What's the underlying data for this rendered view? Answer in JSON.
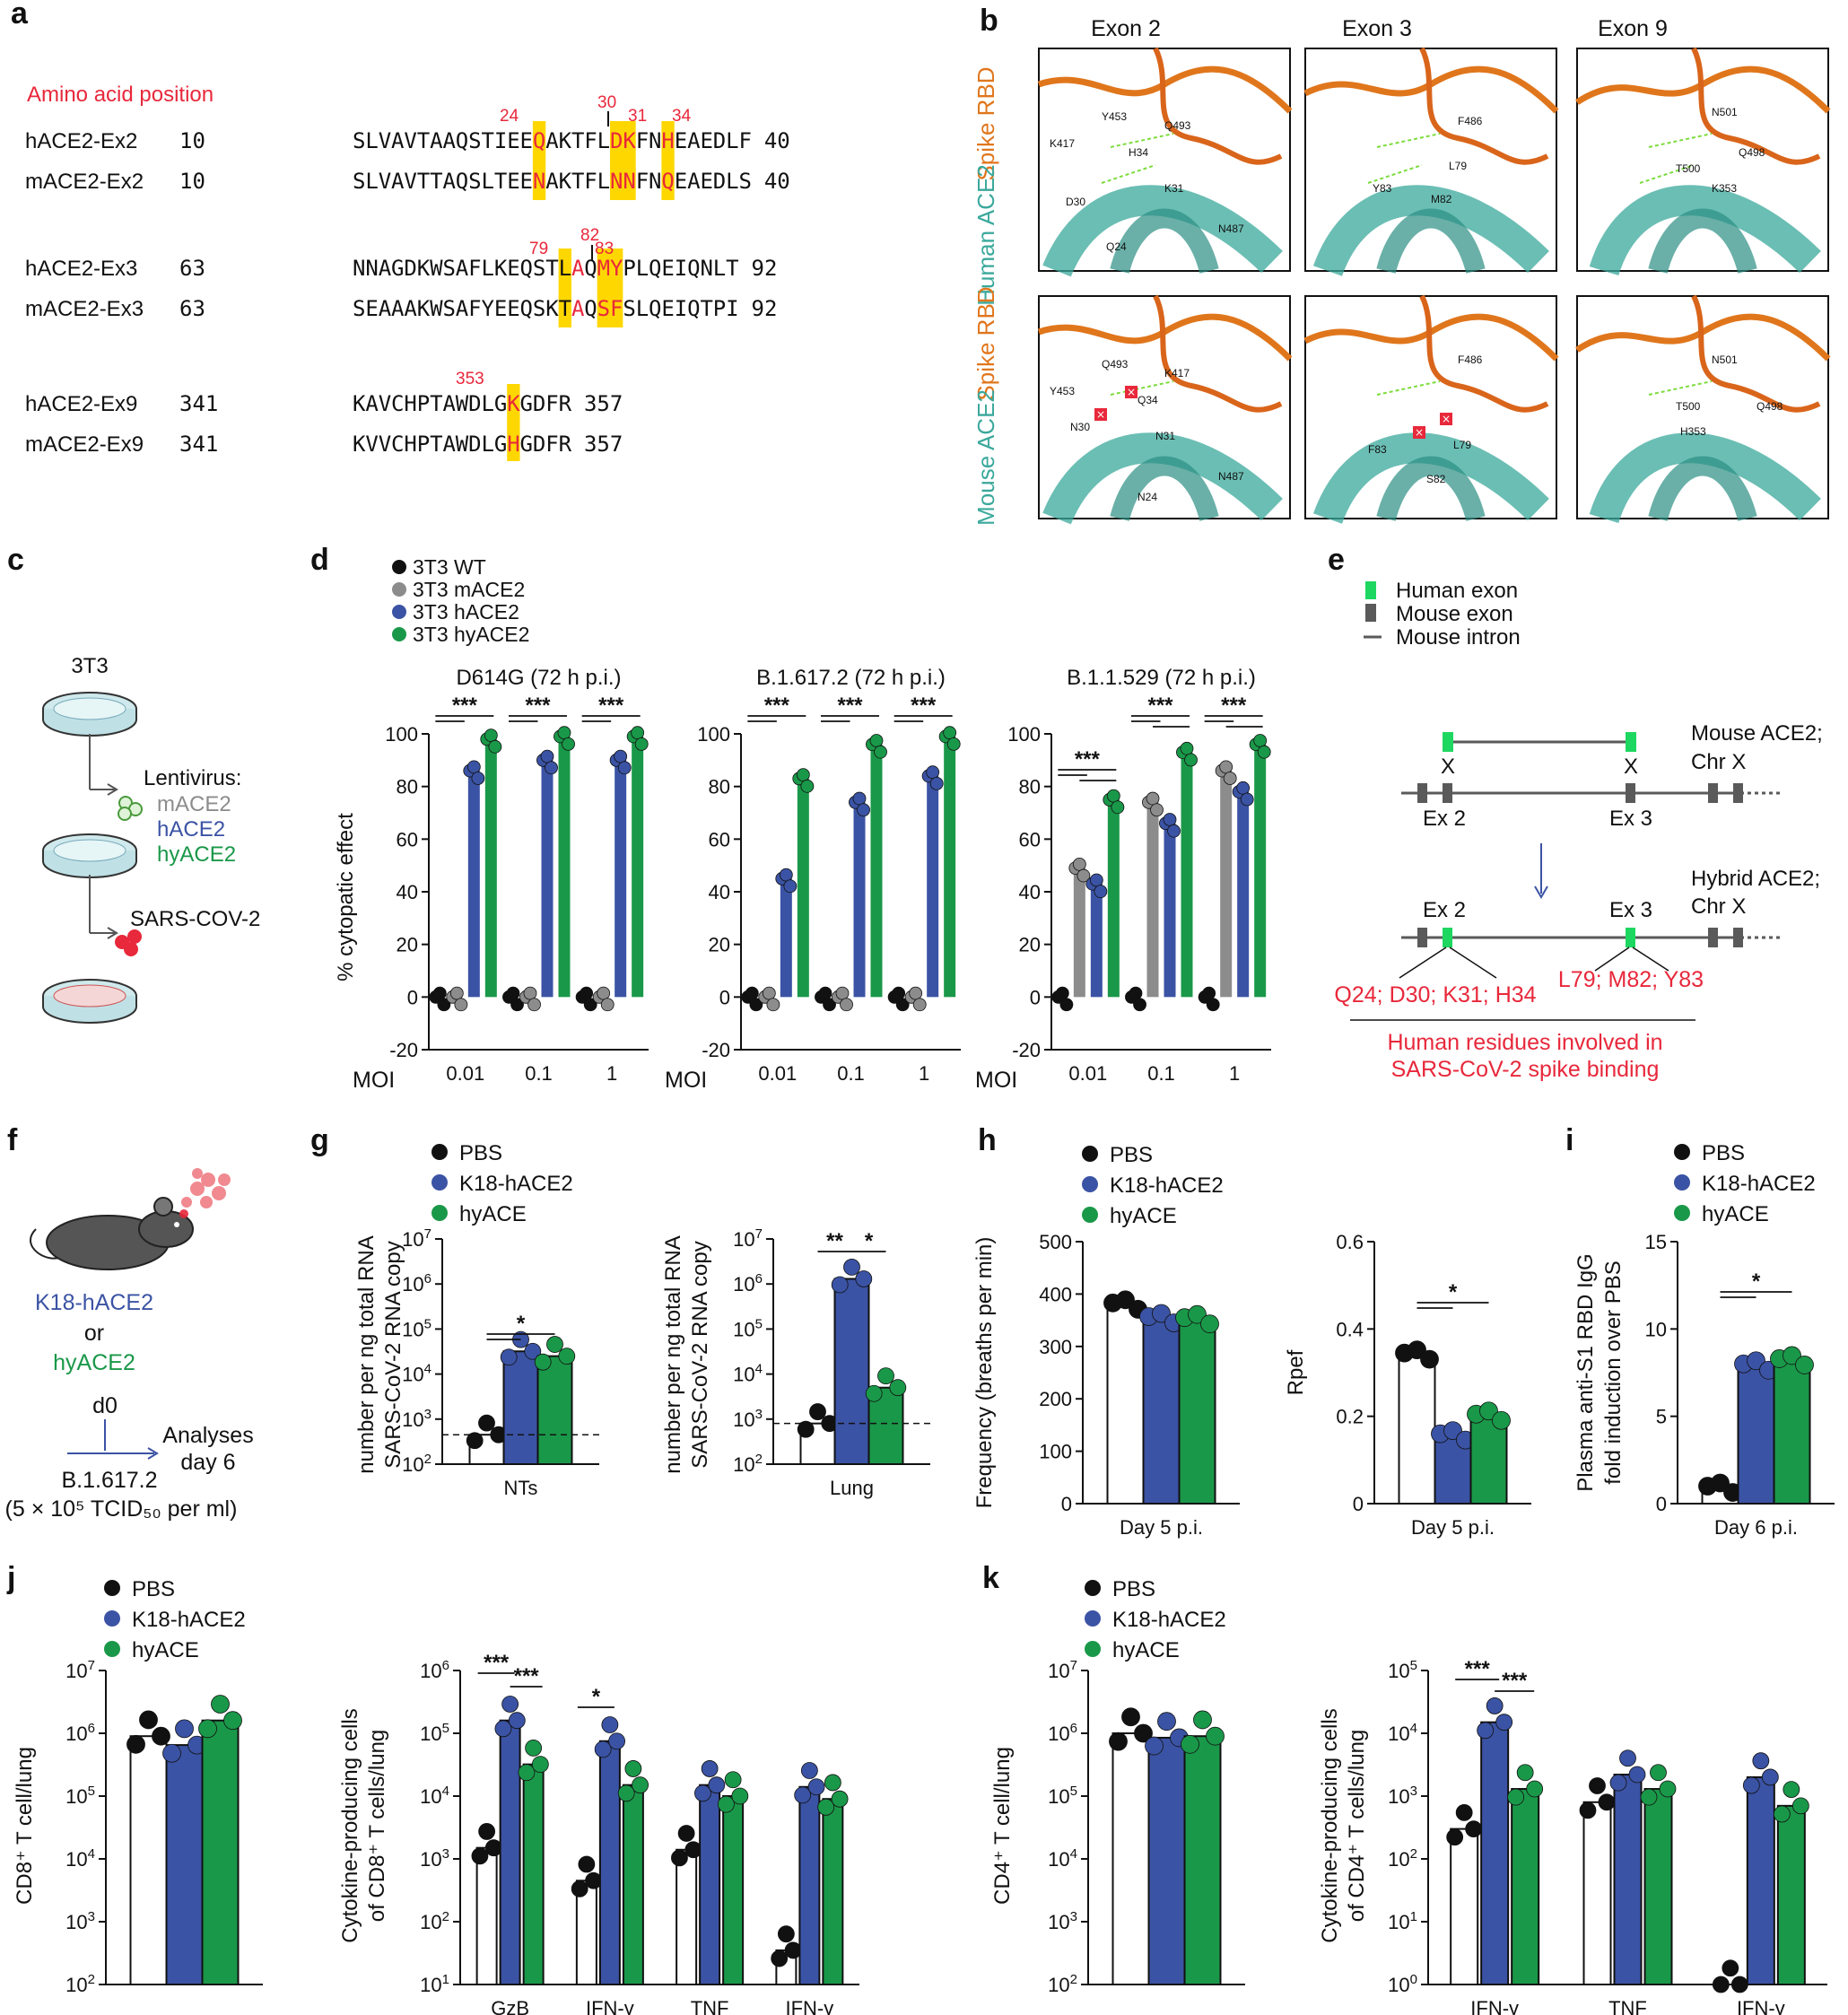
{
  "colors": {
    "wt": "#111111",
    "m": "#8c8c8c",
    "h": "#3b53a4",
    "hy": "#1a9849",
    "pbs": "#ffffff",
    "red": "#e8283b",
    "yellow": "#ffd700",
    "orange": "#e0761c",
    "teal": "#3aa89b",
    "grey": "#5a5a5a"
  },
  "panel_letters": {
    "a": "a",
    "b": "b",
    "c": "c",
    "d": "d",
    "e": "e",
    "f": "f",
    "g": "g",
    "h": "h",
    "i": "i",
    "j": "j",
    "k": "k"
  },
  "panel_a": {
    "header": "Amino acid position",
    "rows": [
      {
        "label": "hACE2-Ex2",
        "start": "10",
        "seq": "SLVAVTAAQSTIEEQAKTFLDKFNHEAEDLF",
        "end": "40"
      },
      {
        "label": "mACE2-Ex2",
        "start": "10",
        "seq": "SLVAVTTAQSLTEENAKTFLNNFNQEAEDLS",
        "end": "40"
      },
      {
        "label": "hACE2-Ex3",
        "start": "63",
        "seq": "NNAGDKWSAFLKEQSTLAQMYPLQEIQNLT",
        "end": "92"
      },
      {
        "label": "mACE2-Ex3",
        "start": "63",
        "seq": "SEAAAKWSAFYEEQSKTAQSFSLQEIQTPI",
        "end": "92"
      },
      {
        "label": "hACE2-Ex9",
        "start": "341",
        "seq": "KAVCHPTAWDLGKGDFR",
        "end": "357"
      },
      {
        "label": "mACE2-Ex9",
        "start": "341",
        "seq": "KVVCHPTAWDLGHGDFR",
        "end": "357"
      }
    ],
    "positions": [
      "24",
      "30",
      "31",
      "34",
      "79",
      "82",
      "83",
      "353"
    ]
  },
  "panel_b": {
    "columns": [
      "Exon 2",
      "Exon 3",
      "Exon 9"
    ],
    "rows": [
      {
        "top": "Spike RBD",
        "bottom": "Human ACE2"
      },
      {
        "top": "Spike RBD",
        "bottom": "Mouse ACE2"
      }
    ],
    "labels": {
      "h_ex2": [
        "K417",
        "Y453",
        "Q493",
        "H34",
        "K31",
        "D30",
        "Q24",
        "N487"
      ],
      "h_ex3": [
        "F486",
        "Y83",
        "L79",
        "M82"
      ],
      "h_ex9": [
        "N501",
        "Q498",
        "T500",
        "K353"
      ],
      "m_ex2": [
        "Y453",
        "Q493",
        "K417",
        "Q34",
        "N30",
        "N31",
        "N24",
        "N487"
      ],
      "m_ex3": [
        "F486",
        "F83",
        "L79",
        "S82"
      ],
      "m_ex9": [
        "N501",
        "Q498",
        "T500",
        "H353"
      ]
    }
  },
  "panel_c": {
    "cell": "3T3",
    "lenti": "Lentivirus:",
    "m": "mACE2",
    "h": "hACE2",
    "hy": "hyACE2",
    "virus": "SARS-COV-2"
  },
  "panel_d": {
    "legend": [
      "3T3 WT",
      "3T3 mACE2",
      "3T3 hACE2",
      "3T3 hyACE2"
    ],
    "ylabel": "% cytopatic effect",
    "xlabel": "MOI",
    "sig": "***"
  },
  "panel_e": {
    "legend": [
      "Human exon",
      "Mouse exon",
      "Mouse intron"
    ],
    "x": "X",
    "top_label": "Mouse ACE2; Chr X",
    "bottom_label": "Hybrid ACE2; Chr X",
    "ex2": "Ex 2",
    "ex3": "Ex 3",
    "res_a": "Q24; D30; K31; H34",
    "res_b": "L79; M82; Y83",
    "caption": "Human residues involved in SARS-CoV-2 spike binding"
  },
  "panel_f": {
    "strain1": "K18-hACE2",
    "or": "or",
    "strain2": "hyACE2",
    "d0": "d0",
    "analyses": "Analyses day 6",
    "virus": "B.1.617.2",
    "dose": "(5 × 10⁵ TCID₅₀ per ml)"
  },
  "legend3": [
    "PBS",
    "K18-hACE2",
    "hyACE"
  ],
  "chart_data": [
    {
      "id": "d1",
      "type": "bar",
      "title": "D614G (72 h p.i.)",
      "categories": [
        "0.01",
        "0.1",
        "1"
      ],
      "xlabel": "MOI",
      "ylabel": "% cytopatic effect",
      "ylim": [
        -20,
        100
      ],
      "series": [
        {
          "name": "3T3 WT",
          "values": [
            0,
            0,
            0
          ]
        },
        {
          "name": "3T3 mACE2",
          "values": [
            0,
            0,
            0
          ]
        },
        {
          "name": "3T3 hACE2",
          "values": [
            86,
            90,
            90
          ]
        },
        {
          "name": "3T3 hyACE2",
          "values": [
            98,
            99,
            99
          ]
        }
      ],
      "annotations": [
        "***",
        "***",
        "***"
      ]
    },
    {
      "id": "d2",
      "type": "bar",
      "title": "B.1.617.2 (72 h p.i.)",
      "categories": [
        "0.01",
        "0.1",
        "1"
      ],
      "xlabel": "MOI",
      "ylabel": "% cytopatic effect",
      "ylim": [
        -20,
        100
      ],
      "series": [
        {
          "name": "3T3 WT",
          "values": [
            0,
            0,
            0
          ]
        },
        {
          "name": "3T3 mACE2",
          "values": [
            0,
            0,
            0
          ]
        },
        {
          "name": "3T3 hACE2",
          "values": [
            45,
            74,
            84
          ]
        },
        {
          "name": "3T3 hyACE2",
          "values": [
            83,
            96,
            99
          ]
        }
      ],
      "annotations": [
        "***",
        "***",
        "***"
      ]
    },
    {
      "id": "d3",
      "type": "bar",
      "title": "B.1.1.529 (72 h p.i.)",
      "categories": [
        "0.01",
        "0.1",
        "1"
      ],
      "xlabel": "MOI",
      "ylabel": "% cytopatic effect",
      "ylim": [
        -20,
        100
      ],
      "series": [
        {
          "name": "3T3 WT",
          "values": [
            0,
            0,
            0
          ]
        },
        {
          "name": "3T3 mACE2",
          "values": [
            49,
            74,
            86
          ]
        },
        {
          "name": "3T3 hACE2",
          "values": [
            43,
            66,
            78
          ]
        },
        {
          "name": "3T3 hyACE2",
          "values": [
            75,
            93,
            96
          ]
        }
      ],
      "annotations": [
        "***",
        "***",
        "***"
      ]
    },
    {
      "id": "g1",
      "type": "bar",
      "categories": [
        "NTs"
      ],
      "ylabel": "SARS-CoV-2 RNA copy number per ng total RNA",
      "yscale": "log",
      "ylim": [
        100,
        10000000
      ],
      "baseline": 450,
      "series": [
        {
          "name": "PBS",
          "values": [
            450
          ]
        },
        {
          "name": "K18-hACE2",
          "values": [
            32000
          ]
        },
        {
          "name": "hyACE",
          "values": [
            25000
          ]
        }
      ],
      "annotations": [
        "*"
      ]
    },
    {
      "id": "g2",
      "type": "bar",
      "categories": [
        "Lung"
      ],
      "ylabel": "SARS-CoV-2 RNA copy number per ng  total RNA",
      "yscale": "log",
      "ylim": [
        100,
        10000000
      ],
      "baseline": 800,
      "series": [
        {
          "name": "PBS",
          "values": [
            800
          ]
        },
        {
          "name": "K18-hACE2",
          "values": [
            1300000
          ]
        },
        {
          "name": "hyACE",
          "values": [
            5000
          ]
        }
      ],
      "annotations": [
        "**",
        "*"
      ]
    },
    {
      "id": "h1",
      "type": "bar",
      "categories": [
        "Day 5 p.i."
      ],
      "ylabel": "Frequency (breaths per min)",
      "ylim": [
        0,
        500
      ],
      "series": [
        {
          "name": "PBS",
          "values": [
            383
          ]
        },
        {
          "name": "K18-hACE2",
          "values": [
            357
          ]
        },
        {
          "name": "hyACE",
          "values": [
            355
          ]
        }
      ]
    },
    {
      "id": "h2",
      "type": "bar",
      "categories": [
        "Day 5 p.i."
      ],
      "ylabel": "Rpef",
      "ylim": [
        0,
        0.6
      ],
      "series": [
        {
          "name": "PBS",
          "values": [
            0.345
          ]
        },
        {
          "name": "K18-hACE2",
          "values": [
            0.16
          ]
        },
        {
          "name": "hyACE",
          "values": [
            0.205
          ]
        }
      ],
      "annotations": [
        "*"
      ]
    },
    {
      "id": "i1",
      "type": "bar",
      "categories": [
        "Day 6 p.i."
      ],
      "ylabel": "Plasma anti-S1 RBD IgG fold induction over PBS",
      "ylim": [
        0,
        15
      ],
      "series": [
        {
          "name": "PBS",
          "values": [
            1
          ]
        },
        {
          "name": "K18-hACE2",
          "values": [
            8
          ]
        },
        {
          "name": "hyACE",
          "values": [
            8.3
          ]
        }
      ],
      "annotations": [
        "*"
      ]
    },
    {
      "id": "j1",
      "type": "bar",
      "categories": [
        ""
      ],
      "ylabel": "CD8⁺ T cell/lung",
      "yscale": "log",
      "ylim": [
        100,
        10000000
      ],
      "series": [
        {
          "name": "PBS",
          "values": [
            900000
          ]
        },
        {
          "name": "K18-hACE2",
          "values": [
            650000
          ]
        },
        {
          "name": "hyACE",
          "values": [
            1600000
          ]
        }
      ]
    },
    {
      "id": "j2",
      "type": "bar",
      "categories": [
        "GzB",
        "IFN-γ",
        "TNF",
        "IFN-γ TNF"
      ],
      "ylabel": "Cytokine-producing cells of CD8⁺ T cells/lung",
      "yscale": "log",
      "ylim": [
        10,
        1000000
      ],
      "series": [
        {
          "name": "PBS",
          "values": [
            1500,
            450,
            1400,
            35
          ]
        },
        {
          "name": "K18-hACE2",
          "values": [
            160000,
            75000,
            15000,
            14000
          ]
        },
        {
          "name": "hyACE",
          "values": [
            32000,
            15000,
            10000,
            9000
          ]
        }
      ],
      "annotations": [
        "***",
        "***",
        "*"
      ]
    },
    {
      "id": "k1",
      "type": "bar",
      "categories": [
        ""
      ],
      "ylabel": "CD4⁺ T cell/lung",
      "yscale": "log",
      "ylim": [
        100,
        10000000
      ],
      "series": [
        {
          "name": "PBS",
          "values": [
            1000000
          ]
        },
        {
          "name": "K18-hACE2",
          "values": [
            850000
          ]
        },
        {
          "name": "hyACE",
          "values": [
            900000
          ]
        }
      ]
    },
    {
      "id": "k2",
      "type": "bar",
      "categories": [
        "IFN-γ",
        "TNF",
        "IFN-γ TNF"
      ],
      "ylabel": "Cytokine-producing cells of CD4⁺ T cells/lung",
      "yscale": "log",
      "ylim": [
        1,
        100000
      ],
      "series": [
        {
          "name": "PBS",
          "values": [
            300,
            800,
            1
          ]
        },
        {
          "name": "K18-hACE2",
          "values": [
            15000,
            2200,
            2000
          ]
        },
        {
          "name": "hyACE",
          "values": [
            1300,
            1300,
            700
          ]
        }
      ],
      "annotations": [
        "***",
        "***"
      ]
    }
  ]
}
